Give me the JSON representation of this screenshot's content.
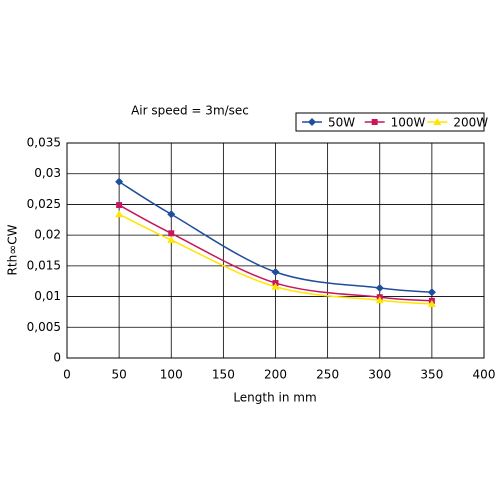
{
  "chart_data": {
    "type": "line",
    "title": "Air speed = 3m/sec",
    "x_label": "Length in mm",
    "y_label": "Rth∞CW",
    "x": [
      50,
      100,
      200,
      300,
      350
    ],
    "series": [
      {
        "name": "50W",
        "color": "#1f4e9c",
        "marker": "diamond",
        "values": [
          0.0287,
          0.0234,
          0.014,
          0.0114,
          0.0107
        ]
      },
      {
        "name": "100W",
        "color": "#c8175d",
        "marker": "square",
        "values": [
          0.0249,
          0.0203,
          0.0122,
          0.0099,
          0.0093
        ]
      },
      {
        "name": "200W",
        "color": "#ffe600",
        "marker": "triangle",
        "values": [
          0.0234,
          0.0192,
          0.0116,
          0.0094,
          0.0088
        ]
      }
    ],
    "xlim": [
      0,
      400
    ],
    "xticks": [
      0,
      50,
      100,
      150,
      200,
      250,
      300,
      350,
      400
    ],
    "ylim": [
      0,
      0.035
    ],
    "yticks": [
      0,
      {
        "value": 0.005,
        "label": "0,005"
      },
      {
        "value": 0.01,
        "label": "0,01"
      },
      {
        "value": 0.015,
        "label": "0,015"
      },
      {
        "value": 0.02,
        "label": "0,02"
      },
      {
        "value": 0.025,
        "label": "0,025"
      },
      {
        "value": 0.03,
        "label": "0,03"
      },
      {
        "value": 0.035,
        "label": "0,035"
      }
    ],
    "grid": true,
    "legend": "top-right"
  }
}
